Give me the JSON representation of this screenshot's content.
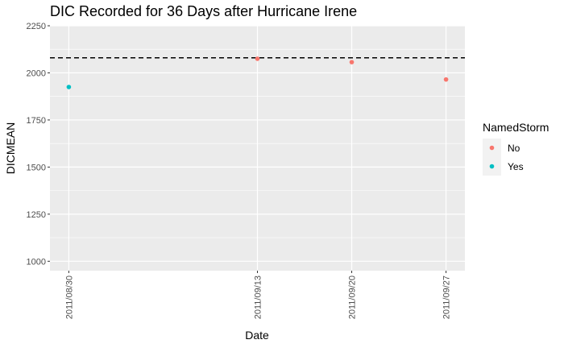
{
  "chart_data": {
    "type": "scatter",
    "title": "DIC Recorded for 36 Days after Hurricane Irene",
    "xlabel": "Date",
    "ylabel": "DICMEAN",
    "x_ticks": [
      "2011/08/30",
      "2011/09/13",
      "2011/09/20",
      "2011/09/27"
    ],
    "y_ticks": [
      1000,
      1250,
      1500,
      1750,
      2000,
      2250
    ],
    "ylim": [
      950,
      2250
    ],
    "grid": true,
    "reference_line": {
      "y": 2080,
      "style": "dashed"
    },
    "legend": {
      "title": "NamedStorm",
      "placement": "right",
      "entries": [
        {
          "label": "No",
          "color": "#F8766D"
        },
        {
          "label": "Yes",
          "color": "#00BFC4"
        }
      ]
    },
    "points": [
      {
        "x": "2011/08/30",
        "y": 1925,
        "NamedStorm": "Yes"
      },
      {
        "x": "2011/09/13",
        "y": 2075,
        "NamedStorm": "No"
      },
      {
        "x": "2011/09/20",
        "y": 2057,
        "NamedStorm": "No"
      },
      {
        "x": "2011/09/27",
        "y": 1965,
        "NamedStorm": "No"
      }
    ]
  }
}
